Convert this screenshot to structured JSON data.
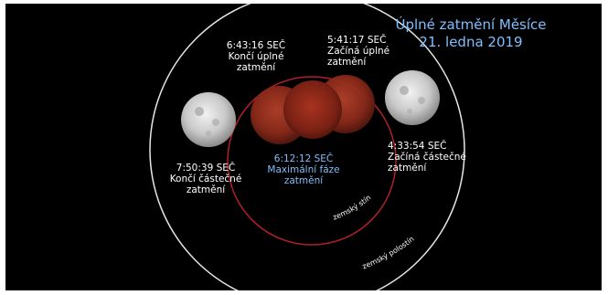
{
  "title": {
    "line1": "Úplné zatmění Měsíce",
    "line2": "21. ledna 2019"
  },
  "colors": {
    "background": "#000000",
    "penumbra_ring": "#e6e6e6",
    "umbra_ring": "#b0202a",
    "title": "#7fbfff",
    "maximum_label": "#7fbfff",
    "text": "#ffffff"
  },
  "events": {
    "ends_total": {
      "time": "6:43:16 SEČ",
      "line1": "Končí úplné",
      "line2": "zatmění"
    },
    "begins_total": {
      "time": "5:41:17 SEČ",
      "line1": "Začíná úplné",
      "line2": "zatmění"
    },
    "begins_partial": {
      "time": "4:33:54 SEČ",
      "line1": "Začíná částečné",
      "line2": "zatmění"
    },
    "ends_partial": {
      "time": "7:50:39 SEČ",
      "line1": "Končí částečné",
      "line2": "zatmění"
    },
    "maximum": {
      "time": "6:12:12 SEČ",
      "line1": "Maximální fáze",
      "line2": "zatmění"
    }
  },
  "regions": {
    "umbra": "zemský stín",
    "penumbra": "zemský polostín"
  }
}
